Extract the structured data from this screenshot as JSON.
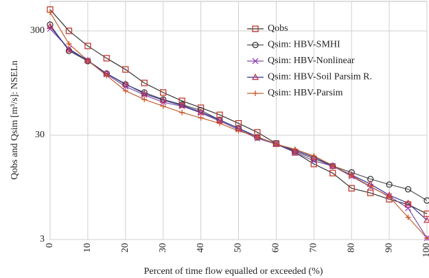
{
  "chart_data": {
    "type": "line",
    "xlabel": "Percent of time flow equalled or exceeded (%)",
    "ylabel": "Qobs and Qsim [m³/s]: NSELn",
    "x": [
      0,
      5,
      10,
      15,
      20,
      25,
      30,
      35,
      40,
      45,
      50,
      55,
      60,
      65,
      70,
      75,
      80,
      85,
      90,
      95,
      100
    ],
    "xlim": [
      0,
      100
    ],
    "xticks": [
      0,
      10,
      20,
      30,
      40,
      50,
      60,
      70,
      80,
      90,
      100
    ],
    "ylim": [
      3,
      575
    ],
    "yticks": [
      3,
      30,
      300
    ],
    "log_y": true,
    "grid": true,
    "legend": "upper right",
    "series": [
      {
        "name": "Qobs",
        "color": "#c0392b",
        "line_color": "#333333",
        "marker": "square",
        "values": [
          480,
          300,
          215,
          164,
          128,
          95,
          77,
          64,
          55,
          47,
          39,
          32,
          25,
          20.5,
          15.9,
          13,
          9.3,
          8.4,
          7.3,
          6.5,
          5.3
        ]
      },
      {
        "name": "Qsim: HBV-SMHI",
        "color": "#333333",
        "line_color": "#555555",
        "marker": "circle",
        "values": [
          344,
          193,
          154,
          117,
          92,
          77,
          66,
          59,
          52,
          42,
          35,
          28.6,
          25,
          21,
          17.9,
          15.2,
          13.2,
          11.4,
          10.1,
          9.1,
          7.1
        ]
      },
      {
        "name": "Qsim: HBV-Nonlinear",
        "color": "#9b3fc0",
        "line_color": "#7a4fa0",
        "marker": "x",
        "values": [
          314,
          202,
          156,
          115,
          88,
          73,
          62,
          57,
          49,
          41,
          34,
          28,
          24.6,
          20.5,
          17,
          15.2,
          12.1,
          9.6,
          7.8,
          6.0,
          3.1
        ]
      },
      {
        "name": "Qsim: HBV-Soil Parsim R.",
        "color": "#c03050",
        "line_color": "#303090",
        "marker": "triangle",
        "values": [
          332,
          198,
          156,
          117,
          93,
          75,
          65,
          58,
          50,
          42,
          35,
          29,
          24.6,
          21.5,
          18.5,
          15.2,
          12.5,
          10.2,
          8.0,
          6.7,
          4.6
        ]
      },
      {
        "name": "Qsim: HBV-Parsim",
        "color": "#d05020",
        "line_color": "#c06030",
        "marker": "plus",
        "values": [
          452,
          225,
          156,
          112,
          80,
          66,
          57,
          49.5,
          44,
          39,
          33,
          29,
          24.6,
          22,
          19,
          15.4,
          12.3,
          9.7,
          7.7,
          4.9,
          3.1
        ]
      }
    ]
  }
}
